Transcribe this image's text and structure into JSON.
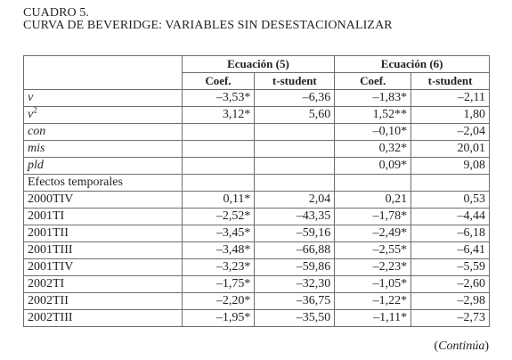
{
  "title_line1": "CUADRO 5.",
  "title_line2": "CURVA DE BEVERIDGE: VARIABLES SIN DESESTACIONALIZAR",
  "groups": [
    {
      "label": "Ecuación (5)"
    },
    {
      "label": "Ecuación (6)"
    }
  ],
  "subheaders": [
    "Coef.",
    "t-student",
    "Coef.",
    "t-student"
  ],
  "rows": [
    {
      "label": "v",
      "italic": true,
      "cells": [
        "–3,53*",
        "–6,36",
        "–1,83*",
        "–2,11"
      ]
    },
    {
      "label": "v",
      "sup": "2",
      "italic": true,
      "cells": [
        "3,12*",
        "5,60",
        "1,52**",
        "1,80"
      ]
    },
    {
      "label": "con",
      "italic": true,
      "cells": [
        "",
        "",
        "–0,10*",
        "–2,04"
      ]
    },
    {
      "label": "mis",
      "italic": true,
      "cells": [
        "",
        "",
        "0,32*",
        "20,01"
      ]
    },
    {
      "label": "pld",
      "italic": true,
      "cells": [
        "",
        "",
        "0,09*",
        "9,08"
      ]
    },
    {
      "label": "Efectos temporales",
      "italic": false,
      "cells": [
        "",
        "",
        "",
        ""
      ]
    },
    {
      "label": "2000TIV",
      "italic": false,
      "cells": [
        "0,11*",
        "2,04",
        "0,21",
        "0,53"
      ]
    },
    {
      "label": "2001TI",
      "italic": false,
      "cells": [
        "–2,52*",
        "–43,35",
        "–1,78*",
        "–4,44"
      ]
    },
    {
      "label": "2001TII",
      "italic": false,
      "cells": [
        "–3,45*",
        "–59,16",
        "–2,49*",
        "–6,18"
      ]
    },
    {
      "label": "2001TIII",
      "italic": false,
      "cells": [
        "–3,48*",
        "–66,88",
        "–2,55*",
        "–6,41"
      ]
    },
    {
      "label": "2001TIV",
      "italic": false,
      "cells": [
        "–3,23*",
        "–59,86",
        "–2,23*",
        "–5,59"
      ]
    },
    {
      "label": "2002TI",
      "italic": false,
      "cells": [
        "–1,75*",
        "–32,30",
        "–1,05*",
        "–2,60"
      ]
    },
    {
      "label": "2002TII",
      "italic": false,
      "cells": [
        "–2,20*",
        "–36,75",
        "–1,22*",
        "–2,98"
      ]
    },
    {
      "label": "2002TIII",
      "italic": false,
      "cells": [
        "–1,95*",
        "–35,50",
        "–1,11*",
        "–2,73"
      ]
    }
  ],
  "continua_open": "(",
  "continua_text": "Continúa",
  "continua_close": ")"
}
